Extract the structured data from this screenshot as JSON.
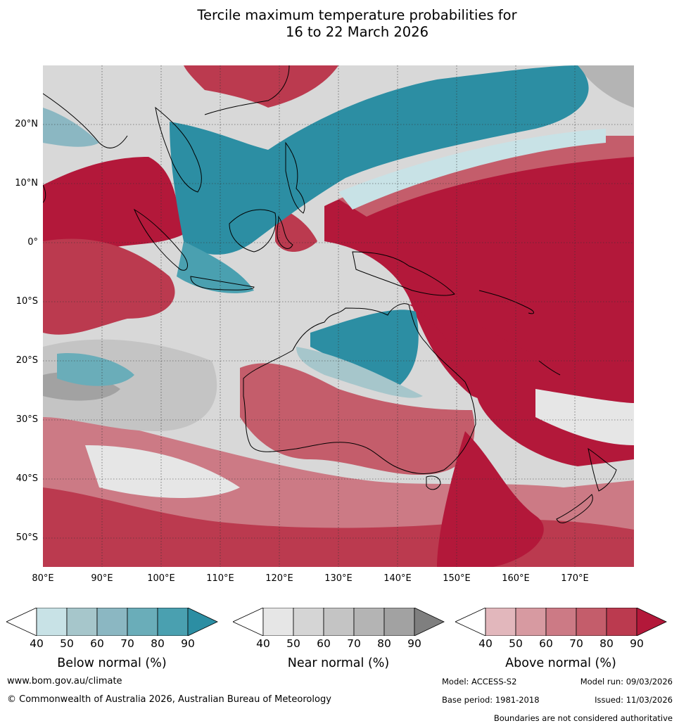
{
  "title_line1": "Tercile maximum temperature probabilities for",
  "title_line2": "16 to 22 March 2026",
  "lat_labels": [
    "20°N",
    "10°N",
    "0°",
    "10°S",
    "20°S",
    "30°S",
    "40°S",
    "50°S"
  ],
  "lon_labels": [
    "80°E",
    "90°E",
    "100°E",
    "110°E",
    "120°E",
    "130°E",
    "140°E",
    "150°E",
    "160°E",
    "170°E"
  ],
  "colorbars": [
    {
      "name": "Below normal (%)",
      "ticks": [
        "40",
        "50",
        "60",
        "70",
        "80",
        "90"
      ],
      "colors": [
        "#c8e2e6",
        "#a6c6cb",
        "#8bb7c2",
        "#6aadb9",
        "#4aa0b0",
        "#2c8ea3"
      ]
    },
    {
      "name": "Near normal (%)",
      "ticks": [
        "40",
        "50",
        "60",
        "70",
        "80",
        "90"
      ],
      "colors": [
        "#e6e6e6",
        "#d5d5d5",
        "#c4c4c4",
        "#b4b4b4",
        "#a2a2a2",
        "#7f7f7f"
      ]
    },
    {
      "name": "Above normal (%)",
      "ticks": [
        "40",
        "50",
        "60",
        "70",
        "80",
        "90"
      ],
      "colors": [
        "#e2b7bc",
        "#d79aa1",
        "#cc7a85",
        "#c45d6b",
        "#bb3a4f",
        "#b3183a"
      ]
    }
  ],
  "footer": {
    "website": "www.bom.gov.au/climate",
    "copyright": "© Commonwealth of Australia 2026, Australian Bureau of Meteorology",
    "model": "Model: ACCESS-S2",
    "model_run": "Model run: 09/03/2026",
    "base_period": "Base period: 1981-2018",
    "issued": "Issued: 11/03/2026",
    "disclaimer": "Boundaries are not considered authoritative"
  }
}
